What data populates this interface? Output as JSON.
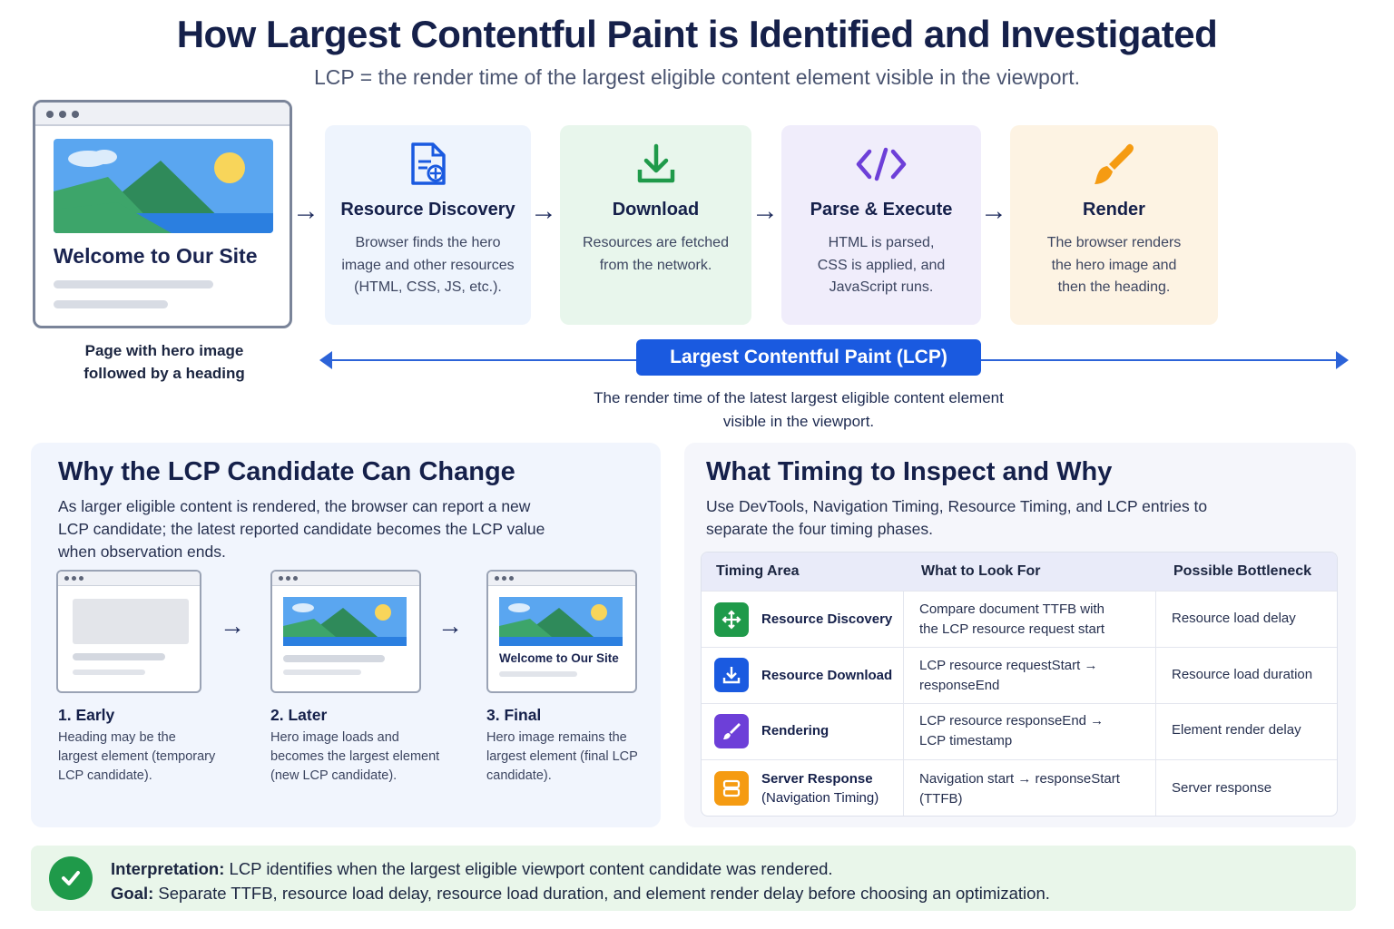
{
  "header": {
    "title": "How Largest Contentful Paint is Identified and Investigated",
    "subtitle": "LCP = the render time of the largest eligible content element visible in the viewport."
  },
  "browser_mock": {
    "heading": "Welcome to Our Site",
    "caption_line1": "Page with hero image",
    "caption_line2": "followed by a heading"
  },
  "steps": [
    {
      "title": "Resource Discovery",
      "desc": [
        "Browser finds the hero",
        "image and other resources",
        "(HTML, CSS, JS, etc.)."
      ],
      "icon": "document-search-icon",
      "color": "#1a5ae0",
      "bg": "#eef4fd"
    },
    {
      "title": "Download",
      "desc": [
        "Resources are fetched",
        "from the network."
      ],
      "icon": "download-icon",
      "color": "#1f9a4a",
      "bg": "#e8f6ec"
    },
    {
      "title": "Parse & Execute",
      "desc": [
        "HTML is parsed,",
        "CSS is applied, and",
        "JavaScript runs."
      ],
      "icon": "code-icon",
      "color": "#6d3fd8",
      "bg": "#f0edfb"
    },
    {
      "title": "Render",
      "desc": [
        "The browser renders",
        "the hero image and",
        "then the heading."
      ],
      "icon": "paintbrush-icon",
      "color": "#f59b12",
      "bg": "#fdf3e3"
    }
  ],
  "lcp": {
    "label": "Largest Contentful Paint (LCP)",
    "note_line1": "The render time of the latest largest eligible content element",
    "note_line2": "visible in the viewport."
  },
  "candidate_panel": {
    "title": "Why the LCP Candidate Can Change",
    "text": [
      "As larger eligible content is rendered, the browser can report a new",
      "LCP candidate; the latest reported candidate becomes the LCP value",
      "when observation ends."
    ],
    "final_mock_heading": "Welcome to Our Site",
    "stages": [
      {
        "title": "1. Early",
        "desc": [
          "Heading may be the",
          "largest element (temporary",
          "LCP candidate)."
        ]
      },
      {
        "title": "2. Later",
        "desc": [
          "Hero image loads and",
          "becomes the largest element",
          "(new LCP candidate)."
        ]
      },
      {
        "title": "3. Final",
        "desc": [
          "Hero image remains the",
          "largest element (final LCP",
          "candidate)."
        ]
      }
    ]
  },
  "timing_panel": {
    "title": "What Timing to Inspect and Why",
    "text": [
      "Use DevTools, Navigation Timing, Resource Timing, and LCP entries to",
      "separate the four timing phases."
    ],
    "columns": [
      "Timing Area",
      "What to Look For",
      "Possible Bottleneck"
    ],
    "rows": [
      {
        "area": "Resource Discovery",
        "area_sub": "",
        "look": [
          "Compare document TTFB with",
          "the LCP resource request start"
        ],
        "bottleneck": "Resource load delay",
        "icon": "move-arrows-icon",
        "color": "#1f9a4a"
      },
      {
        "area": "Resource Download",
        "area_sub": "",
        "look": [
          "LCP resource requestStart →",
          "responseEnd"
        ],
        "bottleneck": "Resource load duration",
        "icon": "download-icon",
        "color": "#1a5ae0"
      },
      {
        "area": "Rendering",
        "area_sub": "",
        "look": [
          "LCP resource responseEnd →",
          "LCP timestamp"
        ],
        "bottleneck": "Element render delay",
        "icon": "paintbrush-icon",
        "color": "#6d3fd8"
      },
      {
        "area": "Server Response",
        "area_sub": "(Navigation Timing)",
        "look": [
          "Navigation start → responseStart",
          "(TTFB)"
        ],
        "bottleneck": "Server response",
        "icon": "server-icon",
        "color": "#f59b12"
      }
    ]
  },
  "banner": {
    "interp_label": "Interpretation:",
    "interp_text": "LCP identifies when the largest eligible viewport content candidate was rendered.",
    "goal_label": "Goal:",
    "goal_text": "Separate TTFB, resource load delay, resource load duration, and element render delay before choosing an optimization."
  }
}
